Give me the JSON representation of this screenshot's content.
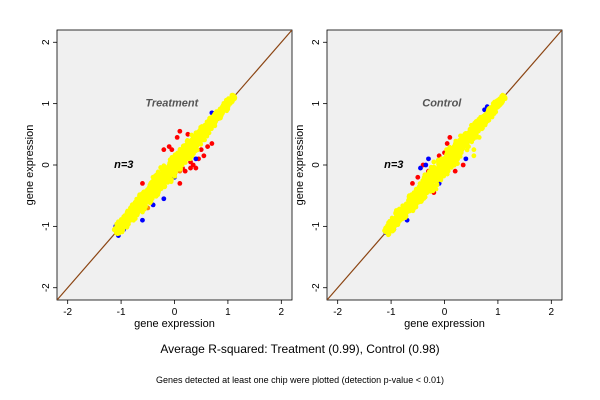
{
  "chart_data": [
    {
      "type": "scatter",
      "panel_label": "Treatment",
      "annotation": "n=3",
      "xlabel": "gene expression",
      "ylabel": "gene expression",
      "xlim": [
        -2.2,
        2.2
      ],
      "ylim": [
        -2.2,
        2.2
      ],
      "xticks": [
        "-2",
        "-1",
        "0",
        "1",
        "2"
      ],
      "yticks": [
        "-2",
        "-1",
        "0",
        "1",
        "2"
      ],
      "reference_line": "y = x",
      "cloud": {
        "from": [
          -1.1,
          -1.1
        ],
        "to": [
          1.12,
          1.12
        ]
      },
      "series": [
        {
          "color": "#ff0000",
          "points": [
            [
              -0.1,
              0.3
            ],
            [
              0.05,
              0.45
            ],
            [
              0.1,
              0.55
            ],
            [
              0.3,
              0.05
            ],
            [
              0.5,
              0.25
            ],
            [
              0.55,
              0.15
            ],
            [
              0.45,
              0.1
            ],
            [
              0.62,
              0.3
            ],
            [
              0.7,
              0.35
            ],
            [
              0.2,
              0.1
            ],
            [
              0.35,
              0.0
            ],
            [
              0.4,
              -0.05
            ],
            [
              0.0,
              -0.15
            ],
            [
              -0.3,
              -0.35
            ],
            [
              0.15,
              -0.05
            ],
            [
              -0.05,
              0.25
            ],
            [
              -0.6,
              -0.3
            ],
            [
              -0.2,
              0.25
            ],
            [
              0.25,
              0.5
            ],
            [
              0.2,
              -0.1
            ],
            [
              0.3,
              -0.05
            ],
            [
              0.1,
              -0.3
            ],
            [
              0.25,
              0.3
            ],
            [
              0.48,
              0.45
            ]
          ]
        },
        {
          "color": "#0000ff",
          "points": [
            [
              -1.05,
              -1.15
            ],
            [
              -0.95,
              -1.05
            ],
            [
              -0.6,
              -0.9
            ],
            [
              -0.2,
              -0.55
            ],
            [
              0.4,
              0.1
            ],
            [
              0.0,
              -0.2
            ],
            [
              -1.1,
              -1.0
            ],
            [
              0.5,
              0.6
            ],
            [
              0.7,
              0.85
            ],
            [
              -0.4,
              -0.65
            ]
          ]
        },
        {
          "color": "#ff8c00",
          "points": [
            [
              -0.9,
              -1.0
            ],
            [
              -0.5,
              -0.7
            ],
            [
              0.1,
              -0.1
            ],
            [
              0.3,
              0.2
            ],
            [
              0.55,
              0.5
            ],
            [
              -0.7,
              -0.8
            ],
            [
              0.8,
              0.75
            ]
          ]
        }
      ],
      "line_color": "#8b4513"
    },
    {
      "type": "scatter",
      "panel_label": "Control",
      "annotation": "n=3",
      "xlabel": "gene expression",
      "ylabel": "gene expression",
      "xlim": [
        -2.2,
        2.2
      ],
      "ylim": [
        -2.2,
        2.2
      ],
      "xticks": [
        "-2",
        "-1",
        "0",
        "1",
        "2"
      ],
      "yticks": [
        "-2",
        "-1",
        "0",
        "1",
        "2"
      ],
      "reference_line": "y = x",
      "cloud": {
        "from": [
          -1.1,
          -1.1
        ],
        "to": [
          1.12,
          1.12
        ]
      },
      "series": [
        {
          "color": "#ff0000",
          "points": [
            [
              -0.6,
              -0.3
            ],
            [
              -0.5,
              -0.2
            ],
            [
              -0.3,
              -0.1
            ],
            [
              -0.1,
              0.15
            ],
            [
              0.05,
              0.35
            ],
            [
              0.1,
              0.45
            ],
            [
              0.2,
              -0.1
            ],
            [
              0.35,
              0.0
            ],
            [
              0.45,
              0.5
            ],
            [
              0.6,
              0.7
            ],
            [
              -0.85,
              -0.75
            ],
            [
              -0.4,
              0.0
            ],
            [
              0.0,
              0.2
            ],
            [
              0.3,
              0.35
            ],
            [
              -0.2,
              -0.45
            ],
            [
              0.15,
              0.05
            ]
          ]
        },
        {
          "color": "#0000ff",
          "points": [
            [
              -0.95,
              -1.05
            ],
            [
              -0.7,
              -0.9
            ],
            [
              -0.45,
              -0.05
            ],
            [
              -0.35,
              0.0
            ],
            [
              -0.3,
              0.1
            ],
            [
              0.1,
              0.25
            ],
            [
              0.25,
              0.3
            ],
            [
              0.5,
              0.55
            ],
            [
              0.75,
              0.9
            ],
            [
              0.8,
              0.95
            ],
            [
              -0.1,
              -0.3
            ],
            [
              0.4,
              0.1
            ],
            [
              0.05,
              -0.1
            ],
            [
              -1.1,
              -1.1
            ]
          ]
        },
        {
          "color": "#ffff00",
          "points": [
            [
              0.5,
              0.4
            ],
            [
              0.6,
              0.55
            ],
            [
              0.55,
              0.25
            ],
            [
              -0.2,
              0.05
            ],
            [
              0.55,
              0.15
            ],
            [
              0.45,
              0.3
            ],
            [
              0.65,
              0.45
            ]
          ]
        }
      ],
      "line_color": "#8b4513"
    }
  ],
  "footer": {
    "main": "Average R-squared: Treatment (0.99), Control (0.98)",
    "note": "Genes detected at least one chip were plotted (detection p-value < 0.01)"
  },
  "colors": {
    "cloud": "#ffff00",
    "panel_background": "#f0f0f0"
  }
}
